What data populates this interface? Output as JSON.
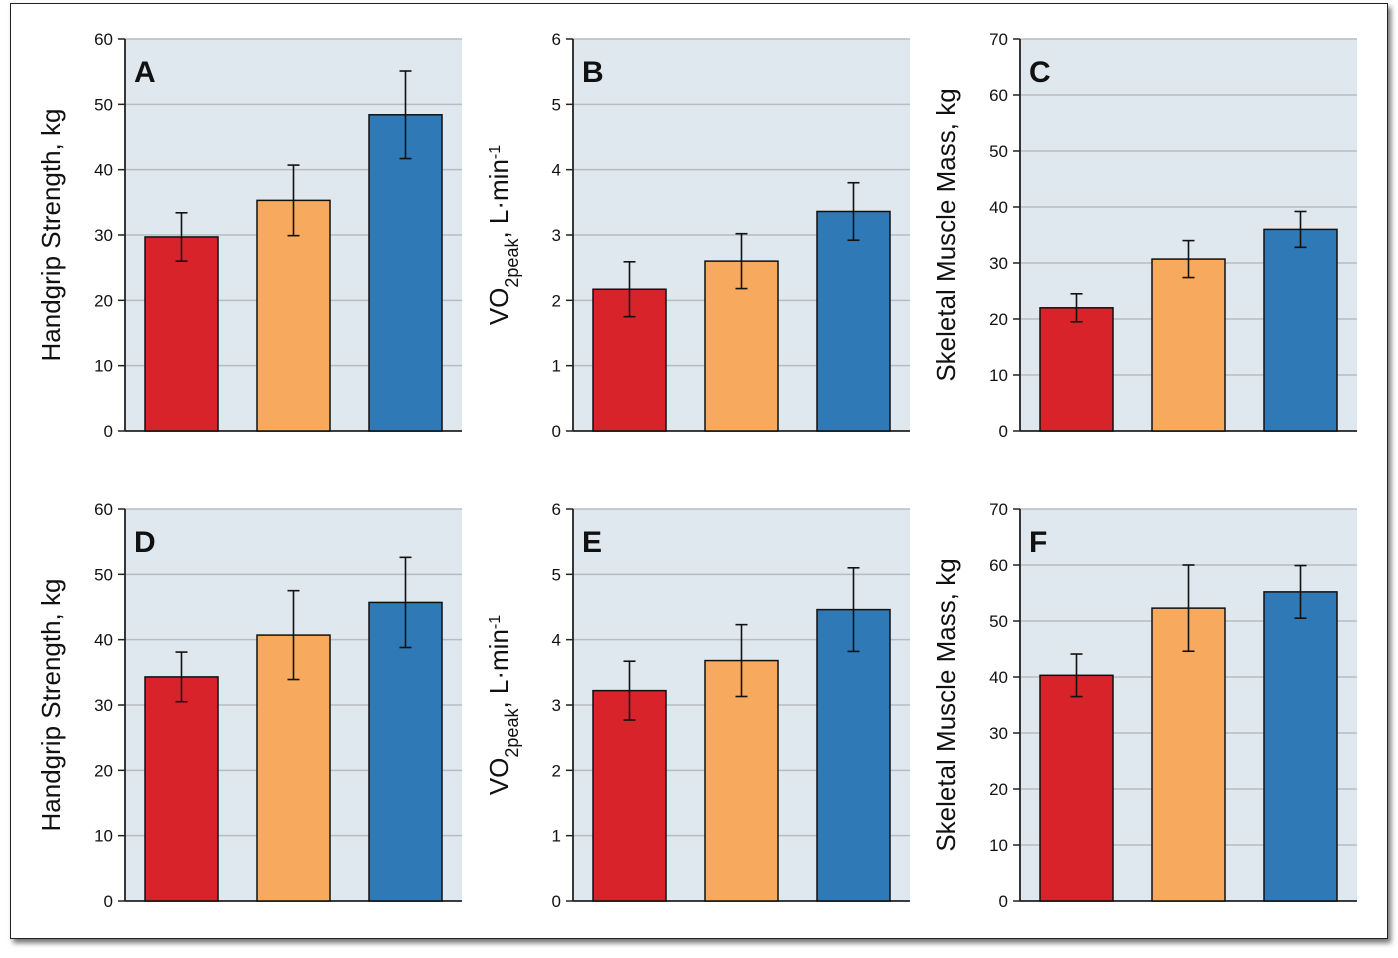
{
  "colors": {
    "plot_bg": "#dfe8ef",
    "grid": "#b7bcc0",
    "axis": "#222222",
    "groups": [
      "#d8232a",
      "#f7aa5e",
      "#2e79b6"
    ]
  },
  "chart_data": [
    {
      "panel": "A",
      "type": "bar",
      "ylabel": "Handgrip Strength, kg",
      "ylim": [
        0,
        60
      ],
      "yticks": [
        0,
        10,
        20,
        30,
        40,
        50,
        60
      ],
      "values": [
        29.7,
        35.3,
        48.4
      ],
      "errors": [
        3.7,
        5.4,
        6.7
      ]
    },
    {
      "panel": "B",
      "type": "bar",
      "ylabel": "VO2peak, L·min-1",
      "ylabel_parts": {
        "main": "VO",
        "sub": "2peak",
        "rest": ", L·min",
        "sup": "-1"
      },
      "ylim": [
        0,
        6
      ],
      "yticks": [
        0,
        1,
        2,
        3,
        4,
        5,
        6
      ],
      "values": [
        2.17,
        2.6,
        3.36
      ],
      "errors": [
        0.42,
        0.42,
        0.44
      ]
    },
    {
      "panel": "C",
      "type": "bar",
      "ylabel": "Skeletal Muscle Mass, kg",
      "ylim": [
        0,
        70
      ],
      "yticks": [
        0,
        10,
        20,
        30,
        40,
        50,
        60,
        70
      ],
      "values": [
        22.0,
        30.7,
        36.0
      ],
      "errors": [
        2.5,
        3.3,
        3.2
      ]
    },
    {
      "panel": "D",
      "type": "bar",
      "ylabel": "Handgrip Strength, kg",
      "ylim": [
        0,
        60
      ],
      "yticks": [
        0,
        10,
        20,
        30,
        40,
        50,
        60
      ],
      "values": [
        34.3,
        40.7,
        45.7
      ],
      "errors": [
        3.8,
        6.8,
        6.9
      ]
    },
    {
      "panel": "E",
      "type": "bar",
      "ylabel": "VO2peak, L·min-1",
      "ylabel_parts": {
        "main": "VO",
        "sub": "2peak",
        "rest": ", L·min",
        "sup": "-1"
      },
      "ylim": [
        0,
        6
      ],
      "yticks": [
        0,
        1,
        2,
        3,
        4,
        5,
        6
      ],
      "values": [
        3.22,
        3.68,
        4.46
      ],
      "errors": [
        0.45,
        0.55,
        0.64
      ]
    },
    {
      "panel": "F",
      "type": "bar",
      "ylabel": "Skeletal Muscle Mass, kg",
      "ylim": [
        0,
        70
      ],
      "yticks": [
        0,
        10,
        20,
        30,
        40,
        50,
        60,
        70
      ],
      "values": [
        40.3,
        52.3,
        55.2
      ],
      "errors": [
        3.8,
        7.7,
        4.7
      ]
    }
  ]
}
